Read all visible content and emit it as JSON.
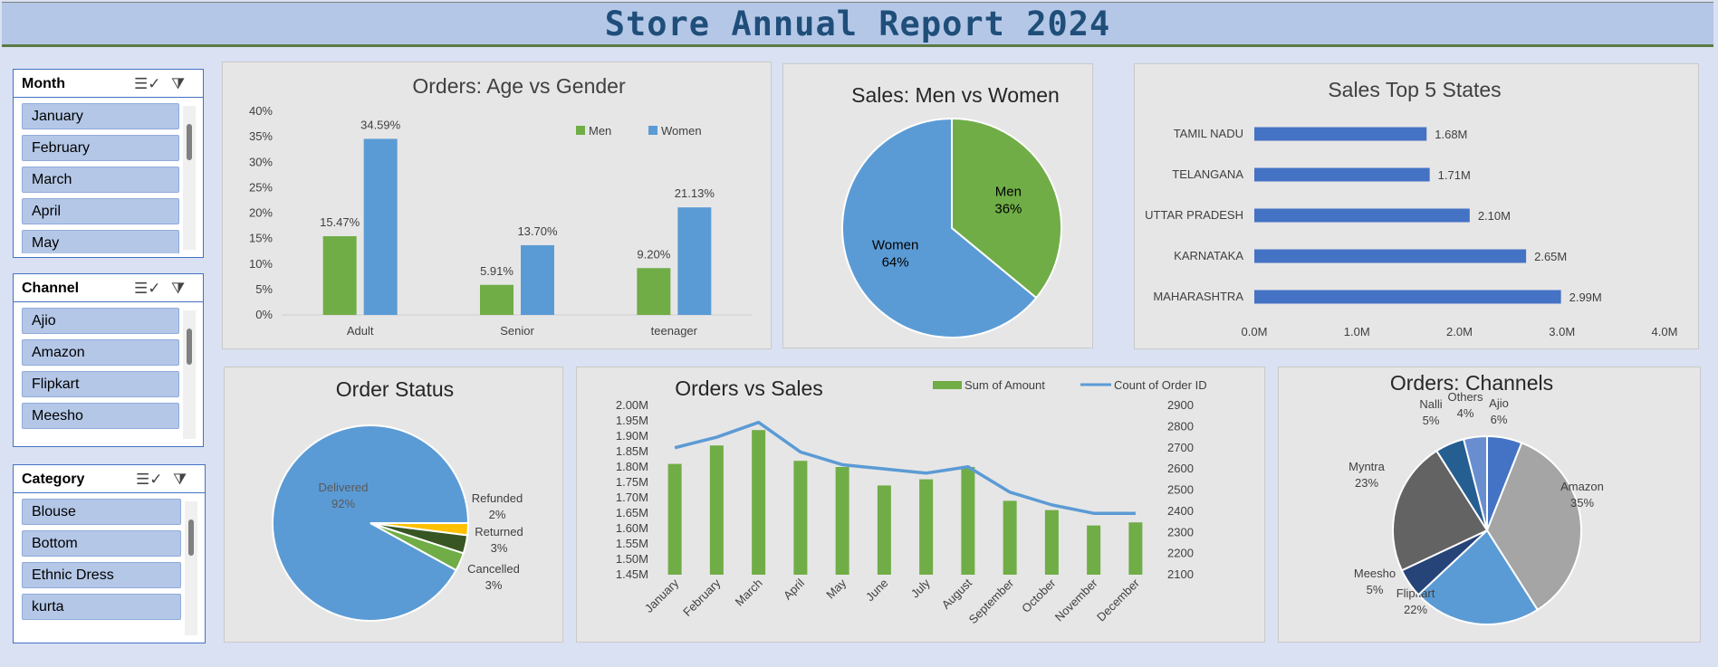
{
  "header": {
    "title": "Store Annual Report 2024"
  },
  "slicers": [
    {
      "title": "Month",
      "items": [
        "January",
        "February",
        "March",
        "April",
        "May"
      ]
    },
    {
      "title": "Channel",
      "items": [
        "Ajio",
        "Amazon",
        "Flipkart",
        "Meesho"
      ]
    },
    {
      "title": "Category",
      "items": [
        "Blouse",
        "Bottom",
        "Ethnic Dress",
        "kurta"
      ]
    }
  ],
  "chart_data": [
    {
      "type": "bar",
      "title": "Orders: Age vs Gender",
      "categories": [
        "Adult",
        "Senior",
        "teenager"
      ],
      "series": [
        {
          "name": "Men",
          "values": [
            15.47,
            5.91,
            9.2
          ],
          "labels": [
            "15.47%",
            "5.91%",
            "9.20%"
          ],
          "color": "#70ad47"
        },
        {
          "name": "Women",
          "values": [
            34.59,
            13.7,
            21.13
          ],
          "labels": [
            "34.59%",
            "13.70%",
            "21.13%"
          ],
          "color": "#5b9bd5"
        }
      ],
      "yticks": [
        "0%",
        "5%",
        "10%",
        "15%",
        "20%",
        "25%",
        "30%",
        "35%",
        "40%"
      ],
      "ylim": [
        0,
        40
      ],
      "legend": "top-right"
    },
    {
      "type": "pie",
      "title": "Sales: Men vs Women",
      "slices": [
        {
          "name": "Men",
          "value": 36,
          "label": "36%",
          "color": "#70ad47"
        },
        {
          "name": "Women",
          "value": 64,
          "label": "64%",
          "color": "#5b9bd5"
        }
      ]
    },
    {
      "type": "bar",
      "orientation": "horizontal",
      "title": "Sales Top 5 States",
      "categories": [
        "TAMIL NADU",
        "TELANGANA",
        "UTTAR PRADESH",
        "KARNATAKA",
        "MAHARASHTRA"
      ],
      "values": [
        1.68,
        1.71,
        2.1,
        2.65,
        2.99
      ],
      "labels": [
        "1.68M",
        "1.71M",
        "2.10M",
        "2.65M",
        "2.99M"
      ],
      "xticks": [
        "0.0M",
        "1.0M",
        "2.0M",
        "3.0M",
        "4.0M"
      ],
      "xlim": [
        0,
        4
      ],
      "color": "#4472c4"
    },
    {
      "type": "pie",
      "title": "Order Status",
      "slices": [
        {
          "name": "Delivered",
          "value": 92,
          "label": "92%",
          "color": "#5b9bd5"
        },
        {
          "name": "Refunded",
          "value": 2,
          "label": "2%",
          "color": "#ffc000"
        },
        {
          "name": "Returned",
          "value": 3,
          "label": "3%",
          "color": "#375623"
        },
        {
          "name": "Cancelled",
          "value": 3,
          "label": "3%",
          "color": "#70ad47"
        }
      ]
    },
    {
      "type": "bar",
      "combo": "bar+line",
      "title": "Orders vs Sales",
      "categories": [
        "January",
        "February",
        "March",
        "April",
        "May",
        "June",
        "July",
        "August",
        "September",
        "October",
        "November",
        "December"
      ],
      "series": [
        {
          "name": "Sum of Amount",
          "type": "bar",
          "axis": "left",
          "values": [
            1.81,
            1.87,
            1.92,
            1.82,
            1.8,
            1.74,
            1.76,
            1.8,
            1.69,
            1.66,
            1.61,
            1.62
          ],
          "color": "#70ad47"
        },
        {
          "name": "Count of Order ID",
          "type": "line",
          "axis": "right",
          "values": [
            2700,
            2750,
            2820,
            2680,
            2620,
            2600,
            2580,
            2610,
            2490,
            2430,
            2390,
            2390
          ],
          "color": "#5b9bd5"
        }
      ],
      "yticks_left": [
        "1.45M",
        "1.50M",
        "1.55M",
        "1.60M",
        "1.65M",
        "1.70M",
        "1.75M",
        "1.80M",
        "1.85M",
        "1.90M",
        "1.95M",
        "2.00M"
      ],
      "ylim_left": [
        1.45,
        2.0
      ],
      "yticks_right": [
        "2100",
        "2200",
        "2300",
        "2400",
        "2500",
        "2600",
        "2700",
        "2800",
        "2900"
      ],
      "ylim_right": [
        2100,
        2900
      ],
      "legend": "top"
    },
    {
      "type": "pie",
      "title": "Orders: Channels",
      "slices": [
        {
          "name": "Ajio",
          "value": 6,
          "label": "6%",
          "color": "#4472c4"
        },
        {
          "name": "Amazon",
          "value": 35,
          "label": "35%",
          "color": "#a5a5a5"
        },
        {
          "name": "Flipkart",
          "value": 22,
          "label": "22%",
          "color": "#5b9bd5"
        },
        {
          "name": "Meesho",
          "value": 5,
          "label": "5%",
          "color": "#264478"
        },
        {
          "name": "Myntra",
          "value": 23,
          "label": "23%",
          "color": "#636363"
        },
        {
          "name": "Nalli",
          "value": 5,
          "label": "5%",
          "color": "#255e91"
        },
        {
          "name": "Others",
          "value": 4,
          "label": "4%",
          "color": "#698ed0"
        }
      ]
    }
  ]
}
